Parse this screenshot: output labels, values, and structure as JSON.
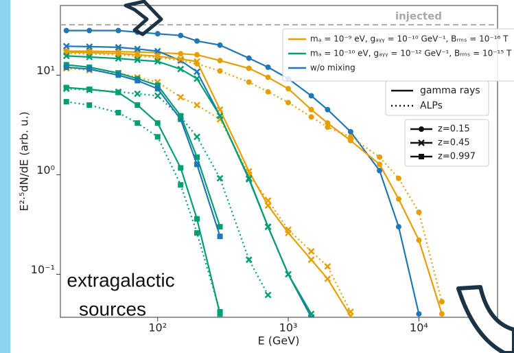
{
  "chart_data": {
    "type": "line",
    "xlabel": "E (GeV)",
    "ylabel": "E²·⁵dN/dE (arb. u.)",
    "log_x": true,
    "log_y": true,
    "xlim": [
      18,
      40000
    ],
    "ylim": [
      0.037,
      50
    ],
    "xticks": [
      {
        "value": 100,
        "label": "10²"
      },
      {
        "value": 1000,
        "label": "10³"
      },
      {
        "value": 10000,
        "label": "10⁴"
      }
    ],
    "yticks": [
      {
        "value": 0.1,
        "label": "10⁻¹"
      },
      {
        "value": 1,
        "label": "10⁰"
      },
      {
        "value": 10,
        "label": "10¹"
      }
    ],
    "reference_line": {
      "label": "injected",
      "value": 32,
      "color": "#aaaaaa"
    },
    "x": [
      20,
      30,
      50,
      70,
      100,
      150,
      200,
      300,
      500,
      700,
      1000,
      1500,
      2000,
      3000,
      5000,
      7000,
      10000,
      15000
    ],
    "series": [
      {
        "color": "#1f77b4",
        "dash": "solid",
        "marker": "circle",
        "values": [
          28,
          28,
          28,
          27,
          26,
          25,
          22,
          20,
          14.8,
          12,
          9.2,
          6.2,
          4.5,
          2.7,
          1.1,
          0.3,
          0.04,
          null
        ]
      },
      {
        "color": "#e69f00",
        "dash": "solid",
        "marker": "circle",
        "values": [
          17.4,
          17.4,
          17.2,
          17,
          16.8,
          16.4,
          16,
          14,
          11.7,
          9.5,
          7.3,
          4.5,
          3.3,
          2.2,
          1.27,
          0.57,
          0.22,
          0.04
        ]
      },
      {
        "color": "#e69f00",
        "dash": "dotted",
        "marker": "circle",
        "values": [
          16.5,
          16.3,
          16,
          15.5,
          15,
          14,
          13,
          11,
          8.5,
          6.8,
          5.3,
          3.8,
          3.0,
          2.4,
          1.5,
          0.92,
          0.42,
          0.053
        ]
      },
      {
        "color": "#1f77b4",
        "dash": "solid",
        "marker": "x",
        "values": [
          19.5,
          19.3,
          19,
          18.3,
          17.4,
          14,
          10.8,
          3.9,
          0.9,
          0.3,
          0.1,
          0.037,
          null,
          null,
          null,
          null,
          null,
          null
        ]
      },
      {
        "color": "#e69f00",
        "dash": "solid",
        "marker": "x",
        "values": [
          17,
          16.8,
          16.5,
          16,
          15.5,
          14.5,
          13.7,
          4.5,
          1.08,
          0.49,
          0.26,
          0.14,
          0.09,
          0.038,
          null,
          null,
          null,
          null
        ]
      },
      {
        "color": "#e69f00",
        "dash": "dotted",
        "marker": "x",
        "values": [
          11.7,
          11.2,
          10.5,
          9.5,
          8.5,
          6,
          5,
          3.6,
          1.0,
          0.55,
          0.28,
          0.17,
          0.12,
          0.042,
          null,
          null,
          null,
          null
        ]
      },
      {
        "color": "#009e73",
        "dash": "solid",
        "marker": "x",
        "values": [
          15.6,
          15.2,
          14.7,
          14.2,
          13.7,
          11.5,
          9.2,
          3.9,
          0.92,
          0.3,
          0.1,
          0.04,
          null,
          null,
          null,
          null,
          null,
          null
        ]
      },
      {
        "color": "#009e73",
        "dash": "solid",
        "marker": "square",
        "values": [
          12.7,
          12,
          10.5,
          9.2,
          7.9,
          3.9,
          1.5,
          0.3,
          null,
          null,
          null,
          null,
          null,
          null,
          null,
          null,
          null,
          null
        ]
      },
      {
        "color": "#1f77b4",
        "dash": "solid",
        "marker": "square",
        "values": [
          12,
          11.5,
          10,
          8.8,
          7.3,
          3.6,
          1.27,
          0.24,
          null,
          null,
          null,
          null,
          null,
          null,
          null,
          null,
          null,
          null
        ]
      },
      {
        "color": "#009e73",
        "dash": "dotted",
        "marker": "x",
        "values": [
          7.3,
          7.1,
          6.8,
          6.5,
          6.2,
          3.8,
          2.4,
          0.92,
          0.14,
          0.062,
          null,
          null,
          null,
          null,
          null,
          null,
          null,
          null
        ]
      },
      {
        "color": "#009e73",
        "dash": "solid",
        "marker": "square",
        "values": [
          7.5,
          7.2,
          6.7,
          5,
          3.3,
          1.17,
          0.36,
          0.04,
          null,
          null,
          null,
          null,
          null,
          null,
          null,
          null,
          null,
          null
        ]
      },
      {
        "color": "#009e73",
        "dash": "dotted",
        "marker": "square",
        "values": [
          5.4,
          5.0,
          4.2,
          3.3,
          2.4,
          0.79,
          0.26,
          0.042,
          null,
          null,
          null,
          null,
          null,
          null,
          null,
          null,
          null,
          null
        ]
      }
    ],
    "legend_mixing": [
      {
        "label": "mₐ = 10⁻⁹ eV,  gₐᵧᵧ = 10⁻¹⁰ GeV⁻¹,  Bᵣₘₛ = 10⁻¹⁶ T",
        "color": "#e69f00"
      },
      {
        "label": "mₐ = 10⁻¹⁰ eV,  gₐᵧᵧ = 10⁻¹² GeV⁻¹,  Bᵣₘₛ = 10⁻¹⁵ T",
        "color": "#009e73"
      },
      {
        "label": "w/o mixing",
        "color": "#1f77b4"
      }
    ],
    "legend_style": [
      {
        "label": "gamma rays",
        "dash": "solid"
      },
      {
        "label": "ALPs",
        "dash": "dotted"
      }
    ],
    "legend_redshift": [
      {
        "label": "z=0.15",
        "marker": "circle"
      },
      {
        "label": "z=0.45",
        "marker": "x"
      },
      {
        "label": "z=0.997",
        "marker": "square"
      }
    ],
    "annotation": [
      "extragalactic",
      "sources"
    ]
  }
}
